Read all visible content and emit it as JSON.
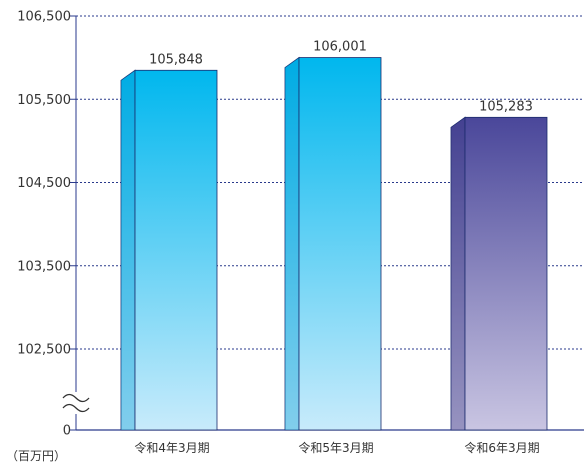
{
  "chart_data": {
    "type": "bar",
    "title": "",
    "xlabel": "",
    "ylabel": "",
    "unit_label": "（百万円）",
    "categories": [
      "令和4年3月期",
      "令和5年3月期",
      "令和6年3月期"
    ],
    "values": [
      105848,
      106001,
      105283
    ],
    "value_labels": [
      "105,848",
      "106,001",
      "105,283"
    ],
    "yticks": [
      106500,
      105500,
      104500,
      103500,
      102500,
      0
    ],
    "ytick_labels": [
      "106,500",
      "105,500",
      "104,500",
      "103,500",
      "102,500",
      "0"
    ],
    "ylim": [
      102000,
      106500
    ],
    "axis_break": true,
    "grid": true,
    "legend": "none",
    "colors": {
      "bar_highlight_top": "#00b7ee",
      "bar_highlight_bottom": "#c8ebfb",
      "bar_highlight_side": "#0098d0",
      "bar_current_top": "#4a479a",
      "bar_current_bottom": "#c9c5e2",
      "bar_current_side": "#3a3782",
      "grid": "#2a3a8c",
      "axis": "#2a3a8c"
    },
    "bar_styles": [
      "highlight",
      "highlight",
      "current"
    ]
  }
}
